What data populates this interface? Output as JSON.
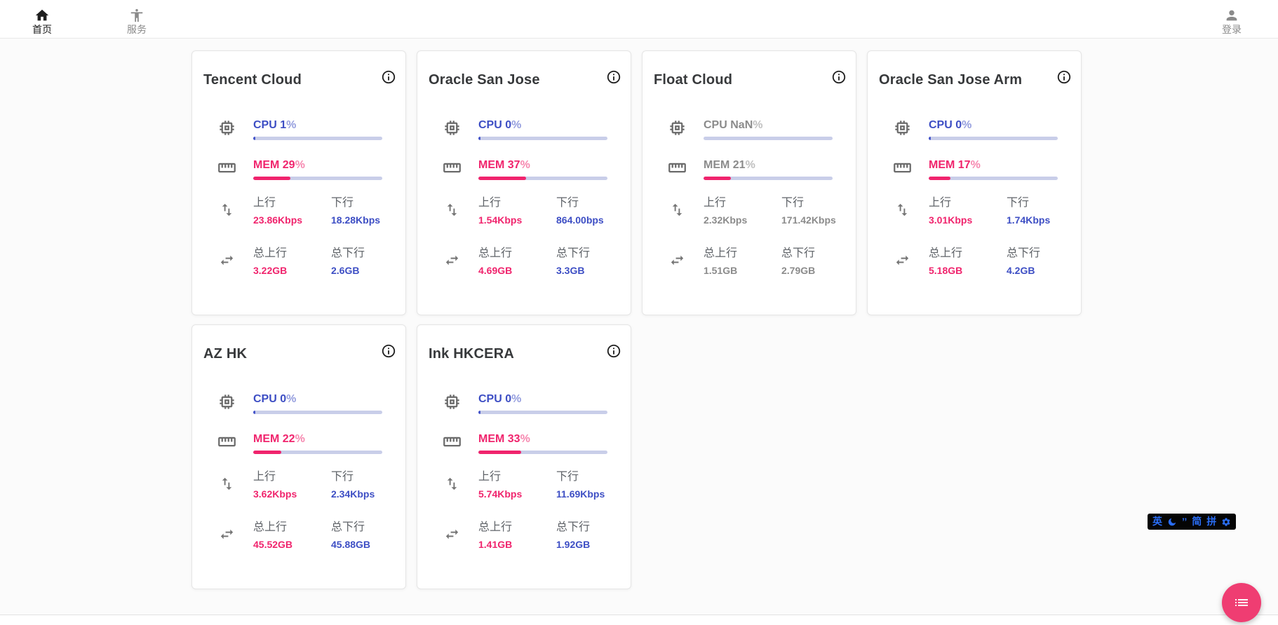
{
  "nav": {
    "home": {
      "label": "首页"
    },
    "services": {
      "label": "服务"
    },
    "login": {
      "label": "登录"
    }
  },
  "labels": {
    "cpu": "CPU",
    "mem": "MEM",
    "up": "上行",
    "down": "下行",
    "total_up": "总上行",
    "total_down": "总下行"
  },
  "colors": {
    "accent_blue": "#3d4ec4",
    "accent_pink": "#f0246d",
    "bar_track": "#c9cee9",
    "fab_pink": "#ef3d72",
    "ime_blue": "#2a6df4"
  },
  "servers": [
    {
      "name": "Tencent Cloud",
      "cpu_text": "1%",
      "cpu_pct": 1,
      "mem_text": "29%",
      "mem_pct": 29,
      "up": "23.86Kbps",
      "down": "18.28Kbps",
      "total_up": "3.22GB",
      "total_down": "2.6GB",
      "online": true
    },
    {
      "name": "Oracle San Jose",
      "cpu_text": "0%",
      "cpu_pct": 0,
      "mem_text": "37%",
      "mem_pct": 37,
      "up": "1.54Kbps",
      "down": "864.00bps",
      "total_up": "4.69GB",
      "total_down": "3.3GB",
      "online": true
    },
    {
      "name": "Float Cloud",
      "cpu_text": "NaN%",
      "cpu_pct": null,
      "mem_text": "21%",
      "mem_pct": 21,
      "up": "2.32Kbps",
      "down": "171.42Kbps",
      "total_up": "1.51GB",
      "total_down": "2.79GB",
      "online": false
    },
    {
      "name": "Oracle San Jose Arm",
      "cpu_text": "0%",
      "cpu_pct": 0,
      "mem_text": "17%",
      "mem_pct": 17,
      "up": "3.01Kbps",
      "down": "1.74Kbps",
      "total_up": "5.18GB",
      "total_down": "4.2GB",
      "online": true
    },
    {
      "name": "AZ HK",
      "cpu_text": "0%",
      "cpu_pct": 0,
      "mem_text": "22%",
      "mem_pct": 22,
      "up": "3.62Kbps",
      "down": "2.34Kbps",
      "total_up": "45.52GB",
      "total_down": "45.88GB",
      "online": true
    },
    {
      "name": "Ink HKCERA",
      "cpu_text": "0%",
      "cpu_pct": 0,
      "mem_text": "33%",
      "mem_pct": 33,
      "up": "5.74Kbps",
      "down": "11.69Kbps",
      "total_up": "1.41GB",
      "total_down": "1.92GB",
      "online": true
    }
  ],
  "ime": {
    "lang": "英",
    "quotes": "’’",
    "simplified": "简",
    "pinyin": "拼"
  }
}
